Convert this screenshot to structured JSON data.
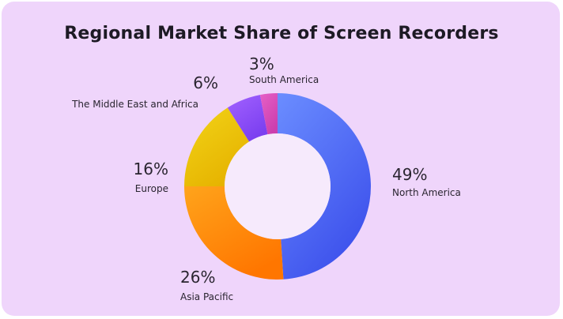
{
  "chart_data": {
    "type": "pie",
    "title": "Regional Market Share of Screen Recorders",
    "donut": true,
    "slices": [
      {
        "label": "North America",
        "value": 49,
        "value_label": "49%",
        "colors": [
          "#6b8dff",
          "#3d51ec"
        ]
      },
      {
        "label": "Asia Pacific",
        "value": 26,
        "value_label": "26%",
        "colors": [
          "#ffa41b",
          "#ff7600"
        ]
      },
      {
        "label": "Europe",
        "value": 16,
        "value_label": "16%",
        "colors": [
          "#f2d418",
          "#e6b300"
        ]
      },
      {
        "label": "The Middle East and Africa",
        "value": 6,
        "value_label": "6%",
        "colors": [
          "#a262ff",
          "#7b3ff0"
        ]
      },
      {
        "label": "South America",
        "value": 3,
        "value_label": "3%",
        "colors": [
          "#e660c6",
          "#cc3fae"
        ]
      }
    ],
    "background_color": "#efd5fb"
  }
}
